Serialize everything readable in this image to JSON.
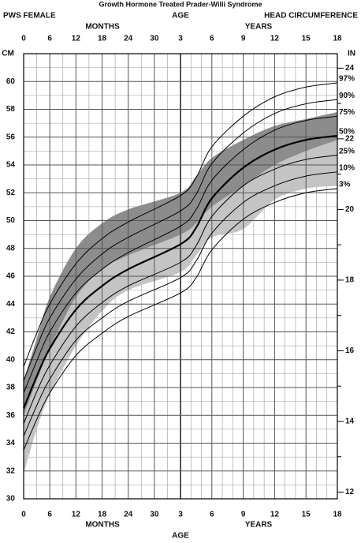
{
  "chart_data": {
    "type": "line",
    "title": "Growth Hormone Treated Prader-Willi Syndrome",
    "subtitle": "PWS FEMALE",
    "measure": "HEAD CIRCUMFERENCE",
    "x_label": "AGE",
    "months_label": "MONTHS",
    "years_label": "YEARS",
    "y_label": "CM",
    "y2_label": "IN",
    "x": [
      0,
      0.25,
      0.5,
      1,
      1.5,
      2,
      3,
      4.5,
      6,
      9,
      12,
      15,
      18
    ],
    "month_ticks": [
      0,
      6,
      12,
      18,
      24,
      30
    ],
    "year_ticks": [
      3,
      6,
      9,
      12,
      15,
      18
    ],
    "ylim": [
      30,
      62
    ],
    "yticks": [
      30,
      32,
      34,
      36,
      38,
      40,
      42,
      44,
      46,
      48,
      50,
      52,
      54,
      56,
      58,
      60
    ],
    "y2lim": [
      11.81,
      24.41
    ],
    "y2ticks": [
      12,
      14,
      16,
      18,
      20,
      22,
      24
    ],
    "grid": true,
    "bands": [
      {
        "color": "#c4c4c4",
        "lower": [
          31.8,
          35.0,
          37.5,
          41.0,
          43.5,
          45.0,
          46.3,
          47.5,
          48.8,
          49.4,
          51.5,
          52.3,
          52.5
        ],
        "upper": [
          38.0,
          40.0,
          42.0,
          45.0,
          47.0,
          48.0,
          49.3,
          51.0,
          53.5,
          54.8,
          55.8,
          56.5,
          57.0
        ]
      },
      {
        "color": "#8c8c8c",
        "lower": [
          36.0,
          38.5,
          40.8,
          44.5,
          46.5,
          47.5,
          49.0,
          49.8,
          51.0,
          52.5,
          54.0,
          55.0,
          55.8
        ],
        "upper": [
          38.5,
          41.5,
          44.5,
          48.0,
          49.8,
          50.8,
          52.0,
          53.2,
          54.5,
          55.8,
          56.8,
          57.3,
          57.8
        ]
      }
    ],
    "series": [
      {
        "name": "97%",
        "color": "#000000",
        "line_width": 1,
        "values": [
          39.5,
          41.9,
          44.0,
          46.9,
          48.7,
          49.9,
          51.8,
          53.1,
          55.3,
          57.5,
          58.9,
          59.6,
          59.9
        ]
      },
      {
        "name": "90%",
        "color": "#000000",
        "line_width": 1,
        "values": [
          38.5,
          40.9,
          43.0,
          45.8,
          47.6,
          48.8,
          50.7,
          51.9,
          54.1,
          56.3,
          57.7,
          58.4,
          58.7
        ]
      },
      {
        "name": "75%",
        "color": "#000000",
        "line_width": 1,
        "values": [
          37.6,
          39.9,
          42.0,
          44.8,
          46.5,
          47.7,
          49.6,
          50.8,
          52.9,
          55.1,
          56.5,
          57.2,
          57.5
        ]
      },
      {
        "name": "50%",
        "color": "#000000",
        "line_width": 2.2,
        "values": [
          36.5,
          38.8,
          40.8,
          43.6,
          45.3,
          46.5,
          48.3,
          49.5,
          51.6,
          53.8,
          55.1,
          55.8,
          56.1
        ]
      },
      {
        "name": "25%",
        "color": "#000000",
        "line_width": 1,
        "values": [
          35.4,
          37.7,
          39.6,
          42.4,
          44.1,
          45.3,
          47.0,
          48.2,
          50.3,
          52.5,
          53.7,
          54.4,
          54.7
        ]
      },
      {
        "name": "10%",
        "color": "#000000",
        "line_width": 1,
        "values": [
          34.5,
          36.7,
          38.6,
          41.4,
          43.0,
          44.2,
          45.9,
          47.1,
          49.1,
          51.3,
          52.5,
          53.2,
          53.5
        ]
      },
      {
        "name": "3%",
        "color": "#000000",
        "line_width": 1,
        "values": [
          33.5,
          35.7,
          37.6,
          40.3,
          41.9,
          43.1,
          44.8,
          45.9,
          47.9,
          50.1,
          51.3,
          52.0,
          52.3
        ]
      }
    ]
  }
}
